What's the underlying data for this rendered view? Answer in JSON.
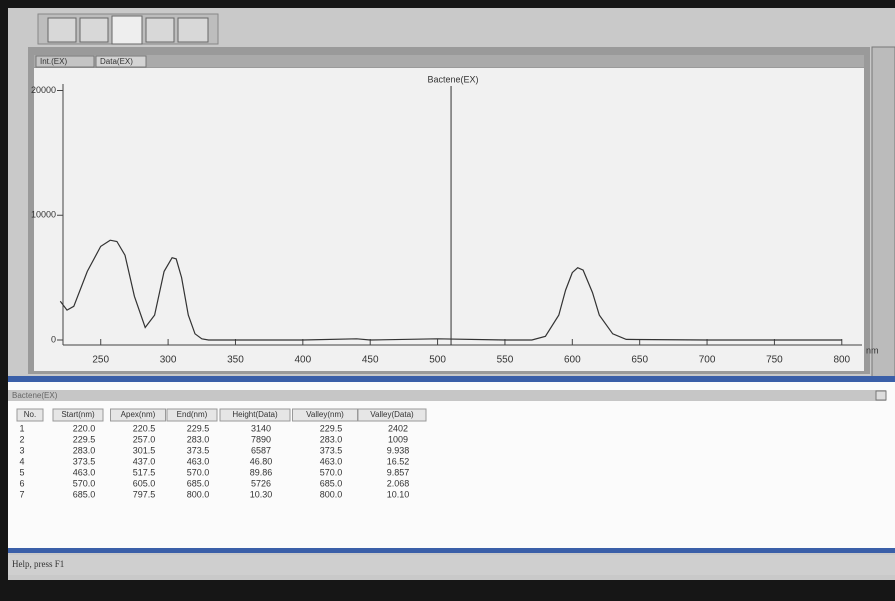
{
  "tabs": [
    "Int.(EX)",
    "Data(EX)"
  ],
  "chart_data": {
    "type": "line",
    "title": "Bactene(EX)",
    "x_label": "nm",
    "x": [
      220,
      225,
      230,
      240,
      250,
      257,
      262,
      268,
      275,
      283,
      290,
      297,
      303,
      306,
      310,
      315,
      320,
      325,
      330,
      340,
      400,
      440,
      450,
      500,
      550,
      570,
      580,
      590,
      595,
      600,
      604,
      608,
      615,
      620,
      630,
      640,
      700,
      800
    ],
    "values": [
      3100,
      2400,
      2700,
      5500,
      7500,
      8000,
      7900,
      6800,
      3500,
      1000,
      2000,
      5500,
      6600,
      6500,
      5000,
      2000,
      500,
      100,
      0,
      0,
      0,
      100,
      0,
      100,
      0,
      0,
      300,
      2000,
      4000,
      5400,
      5800,
      5600,
      3800,
      2000,
      500,
      50,
      0,
      0
    ],
    "color": "#333333",
    "cursor_x": 510,
    "xlim": [
      222,
      815
    ],
    "xticks": [
      250,
      300,
      350,
      400,
      450,
      500,
      550,
      600,
      650,
      700,
      750,
      800
    ],
    "ylim": [
      -400,
      20200
    ],
    "yticks": [
      0,
      10000,
      20000
    ]
  },
  "table": {
    "title": "Bactene(EX)",
    "columns": [
      "No.",
      "Start(nm)",
      "Apex(nm)",
      "End(nm)",
      "Height(Data)",
      "Valley(nm)",
      "Valley(Data)"
    ],
    "rows": [
      [
        "1",
        "220.0",
        "220.5",
        "229.5",
        "3140",
        "229.5",
        "2402"
      ],
      [
        "2",
        "229.5",
        "257.0",
        "283.0",
        "7890",
        "283.0",
        "1009"
      ],
      [
        "3",
        "283.0",
        "301.5",
        "373.5",
        "6587",
        "373.5",
        "9.938"
      ],
      [
        "4",
        "373.5",
        "437.0",
        "463.0",
        "46.80",
        "463.0",
        "16.52"
      ],
      [
        "5",
        "463.0",
        "517.5",
        "570.0",
        "89.86",
        "570.0",
        "9.857"
      ],
      [
        "6",
        "570.0",
        "605.0",
        "685.0",
        "5726",
        "685.0",
        "2.068"
      ],
      [
        "7",
        "685.0",
        "797.5",
        "800.0",
        "10.30",
        "800.0",
        "10.10"
      ]
    ]
  },
  "status": "Help, press F1"
}
